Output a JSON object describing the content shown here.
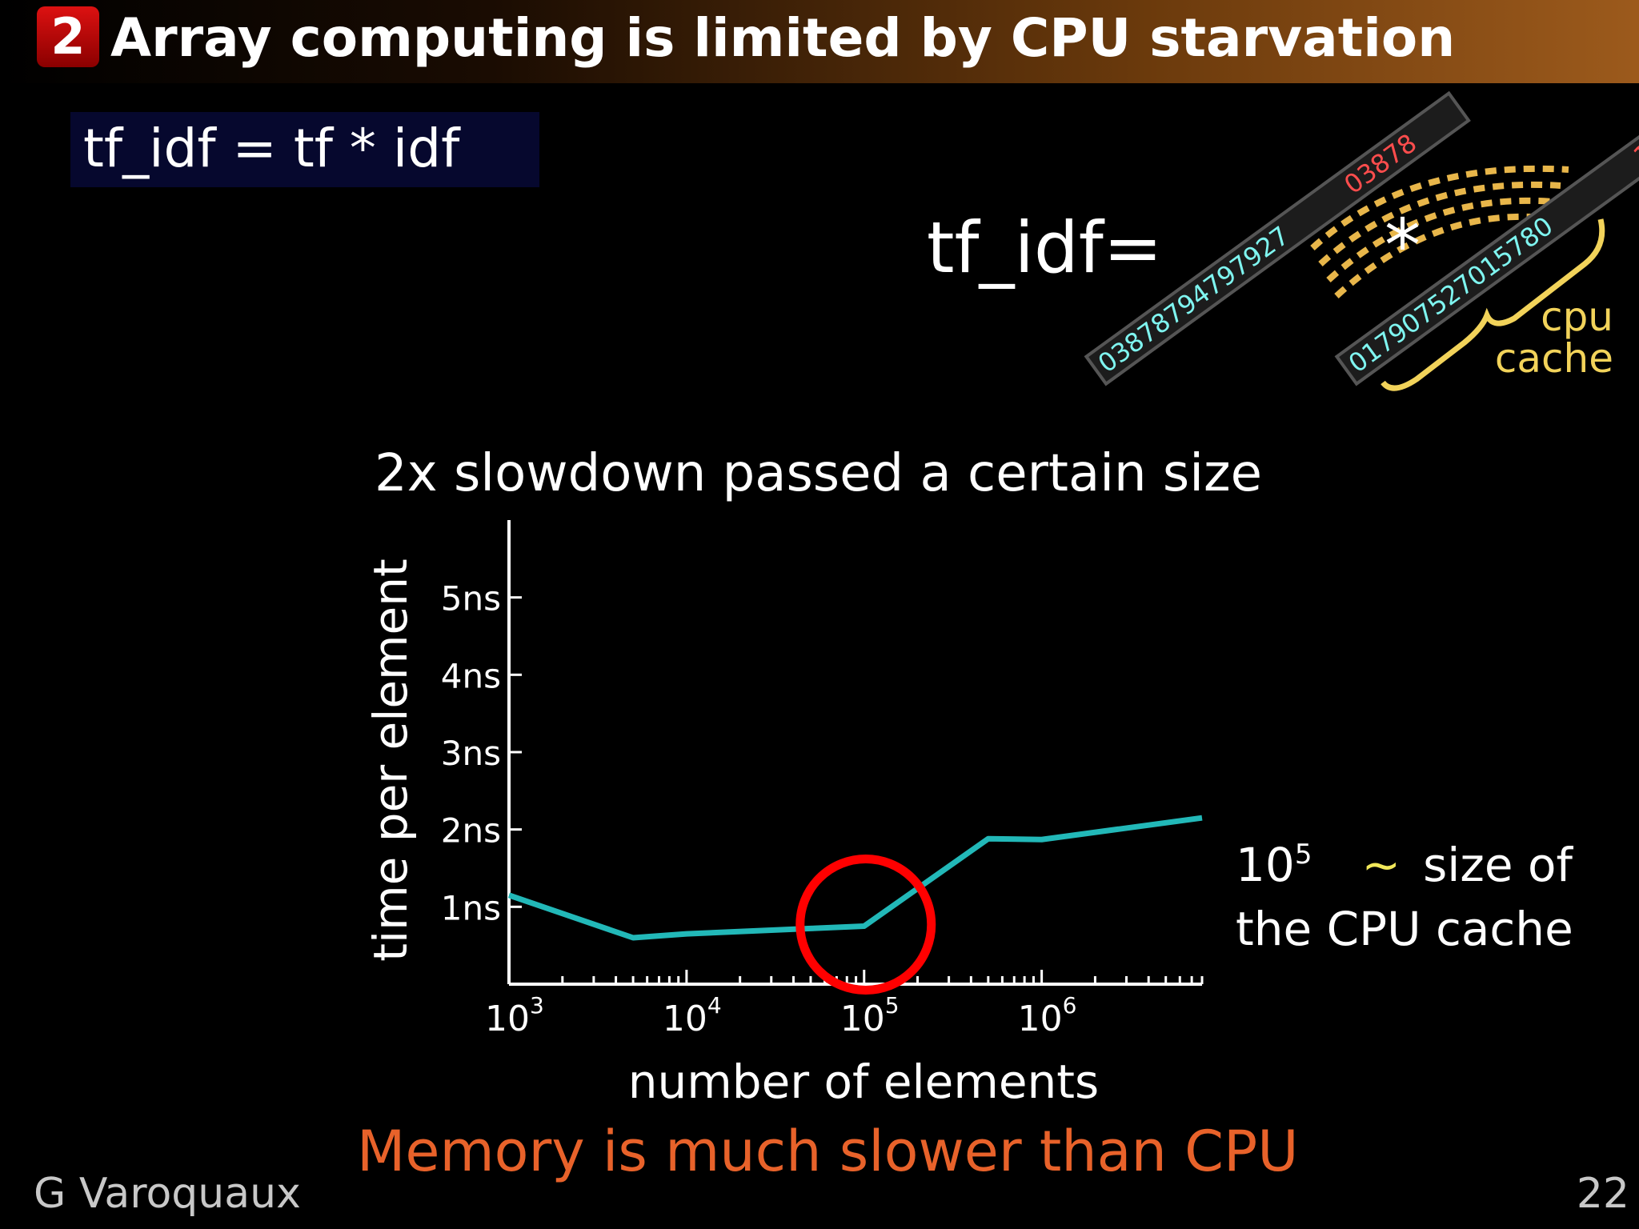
{
  "header": {
    "slide_number": "2",
    "title": "Array computing is limited by CPU starvation"
  },
  "code_box": {
    "text": "tf_idf = tf * idf"
  },
  "illustration": {
    "equation": "tf_idf=",
    "operator": "*",
    "strip_left": {
      "numbers": "03878794797927",
      "highlight": "03878"
    },
    "strip_right": {
      "numbers": "017907527015780",
      "highlight": "17"
    },
    "cache_label": [
      "cpu",
      "cache"
    ],
    "colors": {
      "cache": "#f2d35a",
      "highlight": "#ff4d4d",
      "digits": "#7ff5f0"
    }
  },
  "chart_data": {
    "type": "line",
    "title": "2x slowdown passed a certain size",
    "xlabel": "number of elements",
    "ylabel": "time per element",
    "xscale": "log",
    "xlim": [
      1000,
      8000000
    ],
    "ylim": [
      0,
      6
    ],
    "x_ticks": [
      {
        "base": "10",
        "exp": "3"
      },
      {
        "base": "10",
        "exp": "4"
      },
      {
        "base": "10",
        "exp": "5"
      },
      {
        "base": "10",
        "exp": "6"
      }
    ],
    "y_ticks": [
      "1ns",
      "2ns",
      "3ns",
      "4ns",
      "5ns"
    ],
    "series": [
      {
        "color": "#22b8b8",
        "x": [
          1000,
          5000,
          10000,
          50000,
          100000,
          500000,
          1000000,
          8000000
        ],
        "values": [
          1.15,
          0.6,
          0.65,
          0.72,
          0.75,
          1.88,
          1.87,
          2.15
        ]
      }
    ],
    "highlight": {
      "x": 100000,
      "y": 0.75,
      "color": "#ff0000"
    },
    "grid": false
  },
  "side_note": {
    "base": "10",
    "exp": "5",
    "tilde": "~",
    "after": "size of",
    "line2": "the CPU cache"
  },
  "footer": {
    "message": "Memory is much slower than CPU",
    "author": "G Varoquaux",
    "page": "22"
  }
}
